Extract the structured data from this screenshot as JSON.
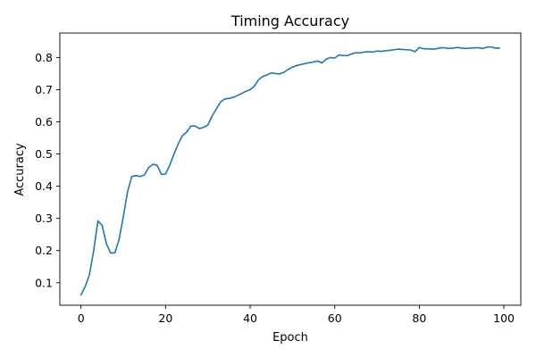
{
  "chart_data": {
    "type": "line",
    "title": "Timing Accuracy",
    "xlabel": "Epoch",
    "ylabel": "Accuracy",
    "xlim": [
      -5,
      104
    ],
    "ylim": [
      0.03,
      0.876
    ],
    "xticks": [
      0,
      20,
      40,
      60,
      80,
      100
    ],
    "yticks": [
      0.1,
      0.2,
      0.3,
      0.4,
      0.5,
      0.6,
      0.7,
      0.8
    ],
    "ytick_labels": [
      "0.1",
      "0.2",
      "0.3",
      "0.4",
      "0.5",
      "0.6",
      "0.7",
      "0.8"
    ],
    "grid": false,
    "line_color": "#1f77b4",
    "series": [
      {
        "x": [
          0,
          1,
          2,
          3,
          4,
          5,
          6,
          7,
          8,
          9,
          10,
          11,
          12,
          13,
          14,
          15,
          16,
          17,
          18,
          19,
          20,
          21,
          22,
          23,
          24,
          25,
          26,
          27,
          28,
          29,
          30,
          31,
          32,
          33,
          34,
          35,
          36,
          37,
          38,
          39,
          40,
          41,
          42,
          43,
          44,
          45,
          46,
          47,
          48,
          49,
          50,
          51,
          52,
          53,
          54,
          55,
          56,
          57,
          58,
          59,
          60,
          61,
          62,
          63,
          64,
          65,
          66,
          67,
          68,
          69,
          70,
          71,
          72,
          73,
          74,
          75,
          76,
          77,
          78,
          79,
          80,
          81,
          82,
          83,
          84,
          85,
          86,
          87,
          88,
          89,
          90,
          91,
          92,
          93,
          94,
          95,
          96,
          97,
          98,
          99
        ],
        "values": [
          0.062,
          0.088,
          0.125,
          0.2,
          0.292,
          0.278,
          0.222,
          0.192,
          0.193,
          0.234,
          0.305,
          0.382,
          0.43,
          0.433,
          0.43,
          0.435,
          0.458,
          0.468,
          0.465,
          0.437,
          0.438,
          0.466,
          0.5,
          0.532,
          0.557,
          0.568,
          0.587,
          0.587,
          0.579,
          0.583,
          0.59,
          0.618,
          0.64,
          0.662,
          0.671,
          0.673,
          0.676,
          0.682,
          0.688,
          0.695,
          0.7,
          0.711,
          0.731,
          0.741,
          0.746,
          0.752,
          0.75,
          0.749,
          0.754,
          0.763,
          0.77,
          0.775,
          0.778,
          0.781,
          0.784,
          0.786,
          0.789,
          0.783,
          0.795,
          0.8,
          0.798,
          0.808,
          0.806,
          0.806,
          0.811,
          0.815,
          0.814,
          0.817,
          0.818,
          0.817,
          0.82,
          0.819,
          0.821,
          0.822,
          0.824,
          0.826,
          0.825,
          0.824,
          0.823,
          0.818,
          0.831,
          0.827,
          0.827,
          0.826,
          0.827,
          0.83,
          0.83,
          0.828,
          0.829,
          0.831,
          0.829,
          0.828,
          0.829,
          0.83,
          0.83,
          0.828,
          0.832,
          0.833,
          0.829,
          0.829
        ]
      }
    ]
  }
}
